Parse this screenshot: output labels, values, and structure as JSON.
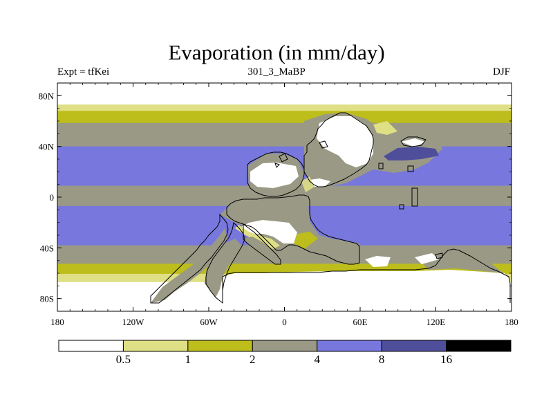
{
  "chart_data": {
    "type": "heatmap",
    "title": "Evaporation (in mm/day)",
    "left_string": "Expt = tfKei",
    "center_string": "301_3_MaBP",
    "right_string": "DJF",
    "projection": "cylindrical equidistant",
    "lon_range": [
      -180,
      180
    ],
    "lat_range": [
      -90,
      90
    ],
    "x_ticks": [
      {
        "value": -180,
        "label": "180"
      },
      {
        "value": -120,
        "label": "120W"
      },
      {
        "value": -60,
        "label": "60W"
      },
      {
        "value": 0,
        "label": "0"
      },
      {
        "value": 60,
        "label": "60E"
      },
      {
        "value": 120,
        "label": "120E"
      },
      {
        "value": 180,
        "label": "180"
      }
    ],
    "y_ticks": [
      {
        "value": 80,
        "label": "80N"
      },
      {
        "value": 40,
        "label": "40N"
      },
      {
        "value": 0,
        "label": "0"
      },
      {
        "value": -40,
        "label": "40S"
      },
      {
        "value": -80,
        "label": "80S"
      }
    ],
    "levels": [
      0.5,
      1,
      2,
      4,
      8,
      16
    ],
    "level_labels": [
      "0.5",
      "1",
      "2",
      "4",
      "8",
      "16"
    ],
    "colors": [
      "#ffffff",
      "#dfdf85",
      "#bdbd1c",
      "#999986",
      "#7777dd",
      "#4e4e9a",
      "#000000"
    ],
    "ocean_lat_profile": [
      {
        "lat": 87,
        "value": 0.3
      },
      {
        "lat": 75,
        "value": 0.3
      },
      {
        "lat": 70,
        "value": 0.8
      },
      {
        "lat": 62,
        "value": 1.6
      },
      {
        "lat": 50,
        "value": 3.0
      },
      {
        "lat": 35,
        "value": 4.5
      },
      {
        "lat": 20,
        "value": 6.0
      },
      {
        "lat": 12,
        "value": 5.0
      },
      {
        "lat": 7,
        "value": 3.0
      },
      {
        "lat": 2,
        "value": 2.5
      },
      {
        "lat": -5,
        "value": 3.5
      },
      {
        "lat": -12,
        "value": 5.5
      },
      {
        "lat": -20,
        "value": 6.5
      },
      {
        "lat": -30,
        "value": 5.0
      },
      {
        "lat": -45,
        "value": 3.0
      },
      {
        "lat": -55,
        "value": 1.6
      },
      {
        "lat": -62,
        "value": 0.8
      },
      {
        "lat": -70,
        "value": 0.3
      },
      {
        "lat": -90,
        "value": 0.3
      }
    ]
  }
}
